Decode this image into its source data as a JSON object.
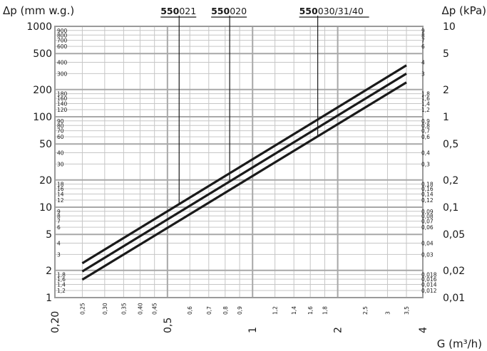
{
  "chart_data": {
    "type": "line",
    "title": "",
    "left_axis_label": "Δp (mm w.g.)",
    "right_axis_label": "Δp (kPa)",
    "x_axis_label": "G (m³/h)",
    "x_scale": "log",
    "y_scale": "log",
    "xlim": [
      0.2,
      4
    ],
    "ylim_mm_wg": [
      1,
      1000
    ],
    "ylim_kpa": [
      0.01,
      10
    ],
    "grid": true,
    "left_major_ticks": [
      "1000",
      "500",
      "200",
      "100",
      "50",
      "20",
      "10",
      "5",
      "2",
      "1"
    ],
    "left_minor_ticks": [
      "900",
      "800",
      "700",
      "600",
      "400",
      "300",
      "180",
      "160",
      "140",
      "120",
      "90",
      "80",
      "70",
      "60",
      "40",
      "30",
      "18",
      "16",
      "14",
      "12",
      "9",
      "8",
      "7",
      "6",
      "4",
      "3",
      "1,8",
      "1,6",
      "1,4",
      "1,2"
    ],
    "right_major_ticks": [
      "10",
      "5",
      "2",
      "1",
      "0,5",
      "0,2",
      "0,1",
      "0,05",
      "0,02",
      "0,01"
    ],
    "right_minor_ticks": [
      "9",
      "8",
      "7",
      "6",
      "4",
      "3",
      "1,8",
      "1,6",
      "1,4",
      "1,2",
      "0,9",
      "0,8",
      "0,7",
      "0,6",
      "0,4",
      "0,3",
      "0,18",
      "0,16",
      "0,14",
      "0,12",
      "0,09",
      "0,08",
      "0,07",
      "0,06",
      "0,04",
      "0,03",
      "0,018",
      "0,016",
      "0,014",
      "0,012"
    ],
    "x_major_ticks": [
      "0,20",
      "0,5",
      "1",
      "2",
      "4"
    ],
    "x_minor_ticks": [
      "0,25",
      "0,30",
      "0,35",
      "0,40",
      "0,45",
      "0,6",
      "0,7",
      "0,8",
      "0,9",
      "1,2",
      "1,4",
      "1,6",
      "1,8",
      "2,5",
      "3",
      "3,5"
    ],
    "series": [
      {
        "name": "550021",
        "bold": "550",
        "suffix": "021",
        "label_x": 0.55,
        "x": [
          0.25,
          3.5
        ],
        "y": [
          2.4,
          370
        ]
      },
      {
        "name": "550020",
        "bold": "550",
        "suffix": "020",
        "label_x": 0.83,
        "x": [
          0.25,
          3.5
        ],
        "y": [
          1.95,
          300
        ]
      },
      {
        "name": "550030/31/40",
        "bold": "550",
        "suffix": "030/31/40",
        "label_x": 1.7,
        "x": [
          0.25,
          3.5
        ],
        "y": [
          1.58,
          240
        ]
      }
    ]
  }
}
